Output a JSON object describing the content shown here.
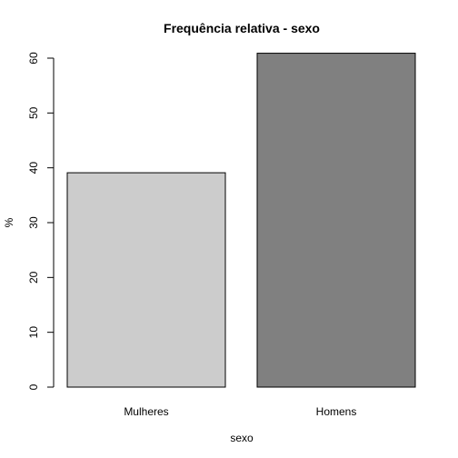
{
  "chart_data": {
    "type": "bar",
    "title": "Frequência relativa - sexo",
    "xlabel": "sexo",
    "ylabel": "%",
    "categories": [
      "Mulheres",
      "Homens"
    ],
    "values": [
      39.1,
      60.9
    ],
    "colors": [
      "#cccccc",
      "#808080"
    ],
    "yticks": [
      "0",
      "10",
      "20",
      "30",
      "40",
      "50",
      "60"
    ],
    "ylim": [
      0,
      60
    ],
    "grid": false,
    "legend": "none"
  }
}
